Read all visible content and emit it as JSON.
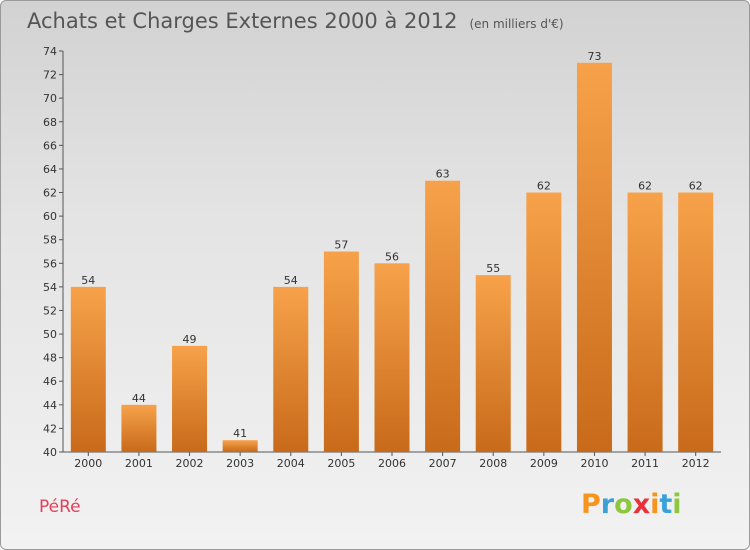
{
  "header": {
    "title": "Achats et Charges Externes 2000 à 2012",
    "subtitle": "(en milliers d'€)"
  },
  "footer": {
    "commune": "PéRé",
    "logo": {
      "letters": [
        "P",
        "r",
        "o",
        "x",
        "i",
        "t",
        "i"
      ],
      "colors": [
        "#f7941d",
        "#3aa0d8",
        "#8dc63f",
        "#e8313a",
        "#f7941d",
        "#3aa0d8",
        "#8dc63f"
      ]
    }
  },
  "chart_data": {
    "type": "bar",
    "categories": [
      "2000",
      "2001",
      "2002",
      "2003",
      "2004",
      "2005",
      "2006",
      "2007",
      "2008",
      "2009",
      "2010",
      "2011",
      "2012"
    ],
    "values": [
      54,
      44,
      49,
      41,
      54,
      57,
      56,
      63,
      55,
      62,
      73,
      62,
      62
    ],
    "title": "Achats et Charges Externes 2000 à 2012",
    "subtitle": "(en milliers d'€)",
    "xlabel": "",
    "ylabel": "",
    "ylim": [
      40,
      74
    ],
    "yticks": [
      40,
      42,
      44,
      46,
      48,
      50,
      52,
      54,
      56,
      58,
      60,
      62,
      64,
      66,
      68,
      70,
      72,
      74
    ],
    "grid": false,
    "bar_color": "#f08a24",
    "bar_color_dark": "#c9691a"
  }
}
